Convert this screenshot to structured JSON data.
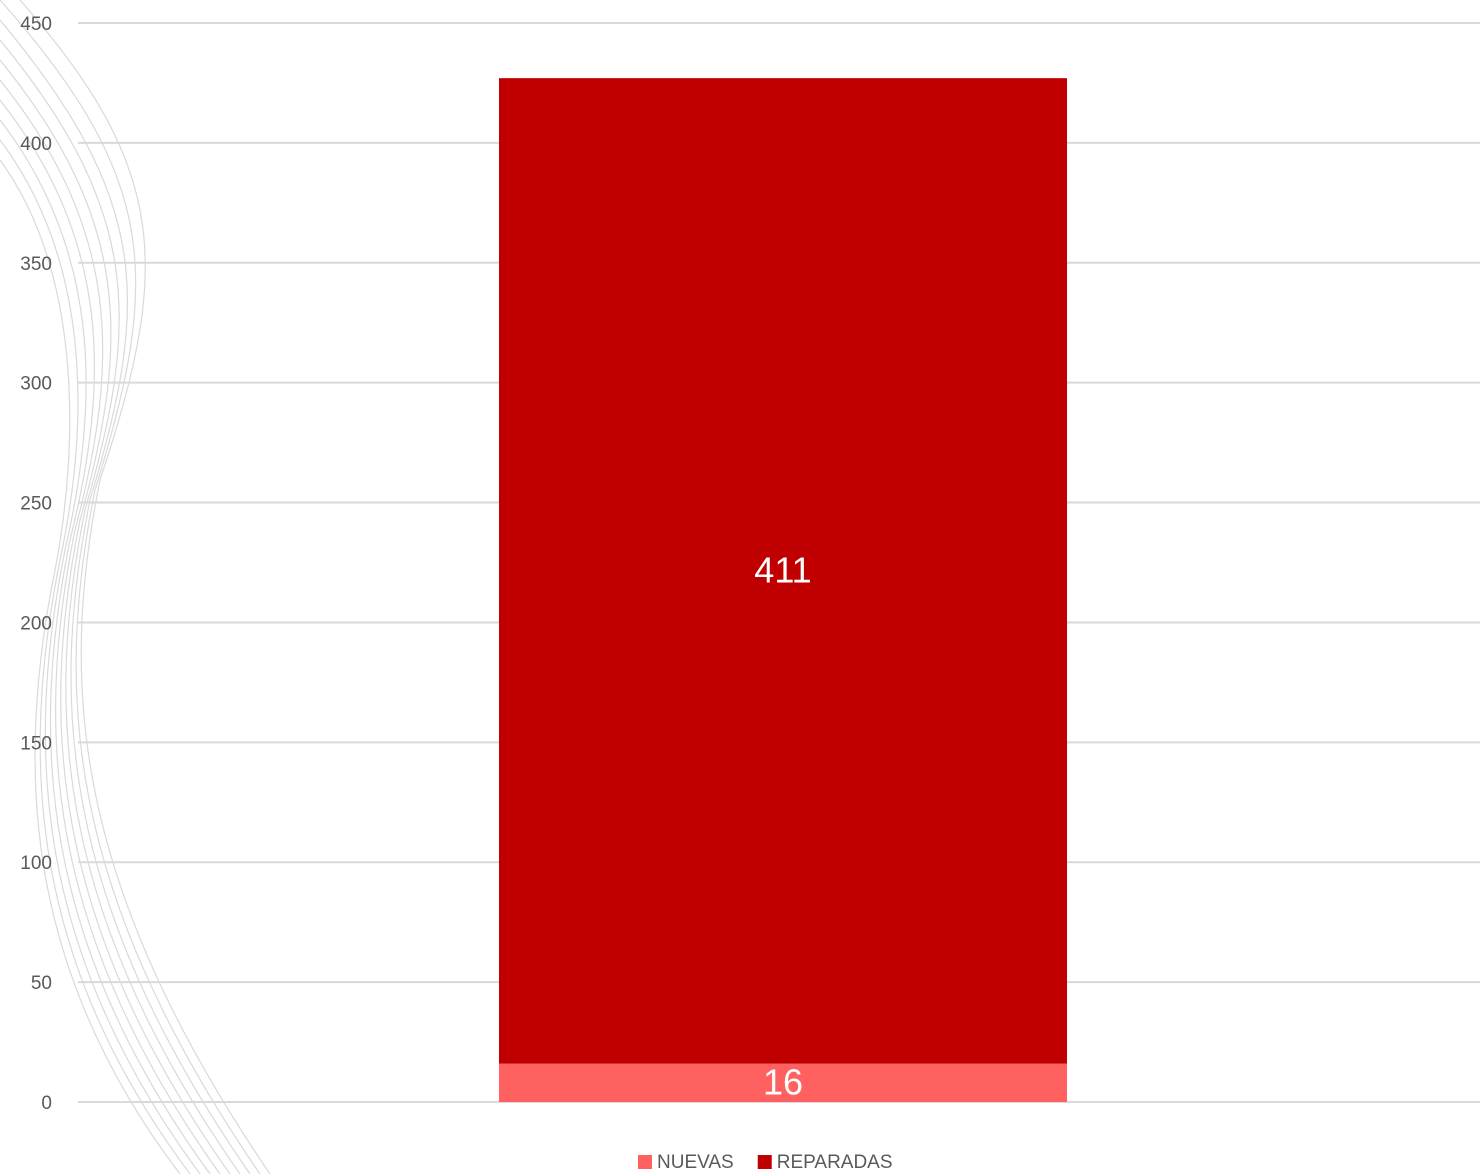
{
  "chart_data": {
    "type": "stacked_bar",
    "categories": [
      null
    ],
    "series": [
      {
        "name": "NUEVAS",
        "color": "#ff6161",
        "values": [
          16
        ]
      },
      {
        "name": "REPARADAS",
        "color": "#c00000",
        "values": [
          411
        ]
      }
    ],
    "ylim": [
      0,
      450
    ],
    "yticks": [
      0,
      50,
      100,
      150,
      200,
      250,
      300,
      350,
      400,
      450
    ],
    "grid": true,
    "legend": "bottom"
  }
}
